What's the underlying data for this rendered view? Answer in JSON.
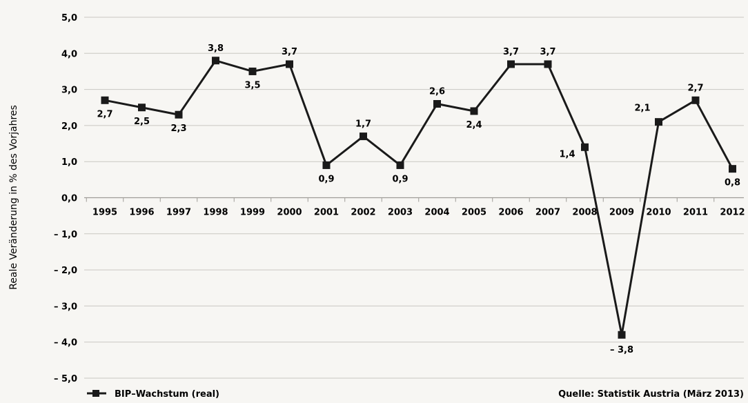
{
  "chart_data": {
    "type": "line",
    "ylabel": "Reale Veränderung in % des Vorjahres",
    "ylim": [
      -5.0,
      5.0
    ],
    "ytick_labels": [
      "5,0",
      "4,0",
      "3,0",
      "2,0",
      "1,0",
      "0,0",
      "– 1,0",
      "– 2,0",
      "– 3,0",
      "– 4,0",
      "– 5,0"
    ],
    "ytick_values": [
      5,
      4,
      3,
      2,
      1,
      0,
      -1,
      -2,
      -3,
      -4,
      -5
    ],
    "grid": true,
    "categories": [
      "1995",
      "1996",
      "1997",
      "1998",
      "1999",
      "2000",
      "2001",
      "2002",
      "2003",
      "2004",
      "2005",
      "2006",
      "2007",
      "2008",
      "2009",
      "2010",
      "2011",
      "2012"
    ],
    "series": [
      {
        "name": "BIP–Wachstum (real)",
        "values": [
          2.7,
          2.5,
          2.3,
          3.8,
          3.5,
          3.7,
          0.9,
          1.7,
          0.9,
          2.6,
          2.4,
          3.7,
          3.7,
          1.4,
          -3.8,
          2.1,
          2.7,
          0.8
        ],
        "labels": [
          "2,7",
          "2,5",
          "2,3",
          "3,8",
          "3,5",
          "3,7",
          "0,9",
          "1,7",
          "0,9",
          "2,6",
          "2,4",
          "3,7",
          "3,7",
          "1,4",
          "– 3,8",
          "2,1",
          "2,7",
          "0,8"
        ],
        "label_positions": [
          "below",
          "below",
          "below",
          "above",
          "below",
          "above",
          "below",
          "above",
          "below",
          "above",
          "below",
          "above",
          "above",
          "left",
          "below",
          "above-left",
          "above",
          "below"
        ]
      }
    ],
    "legend": {
      "label": "BIP–Wachstum (real)",
      "position": "bottom-left"
    },
    "source": "Quelle: Statistik Austria (März 2013)",
    "colors": {
      "line": "#1a1a1a",
      "grid": "#c9c7c2",
      "background": "#f7f6f3"
    }
  }
}
